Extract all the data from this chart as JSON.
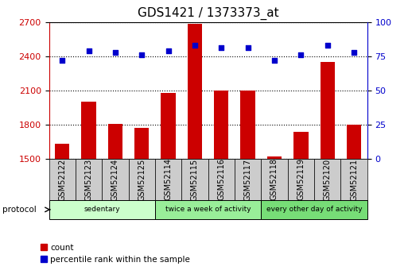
{
  "title": "GDS1421 / 1373373_at",
  "samples": [
    "GSM52122",
    "GSM52123",
    "GSM52124",
    "GSM52125",
    "GSM52114",
    "GSM52115",
    "GSM52116",
    "GSM52117",
    "GSM52118",
    "GSM52119",
    "GSM52120",
    "GSM52121"
  ],
  "counts": [
    1630,
    2000,
    1810,
    1775,
    2075,
    2680,
    2100,
    2100,
    1520,
    1740,
    2350,
    1800
  ],
  "percentile": [
    72,
    79,
    78,
    76,
    79,
    83,
    81,
    81,
    72,
    76,
    83,
    78
  ],
  "groups": [
    {
      "label": "sedentary",
      "start": 0,
      "end": 4,
      "color": "#ccffcc"
    },
    {
      "label": "twice a week of activity",
      "start": 4,
      "end": 8,
      "color": "#99ee99"
    },
    {
      "label": "every other day of activity",
      "start": 8,
      "end": 12,
      "color": "#77dd77"
    }
  ],
  "ylim_left": [
    1500,
    2700
  ],
  "ylim_right": [
    0,
    100
  ],
  "yticks_left": [
    1500,
    1800,
    2100,
    2400,
    2700
  ],
  "yticks_right": [
    0,
    25,
    50,
    75,
    100
  ],
  "bar_color": "#cc0000",
  "dot_color": "#0000cc",
  "bg_color": "#ffffff",
  "grid_color": "#000000",
  "title_fontsize": 11,
  "tick_fontsize": 8,
  "label_fontsize": 8,
  "cell_color": "#cccccc"
}
